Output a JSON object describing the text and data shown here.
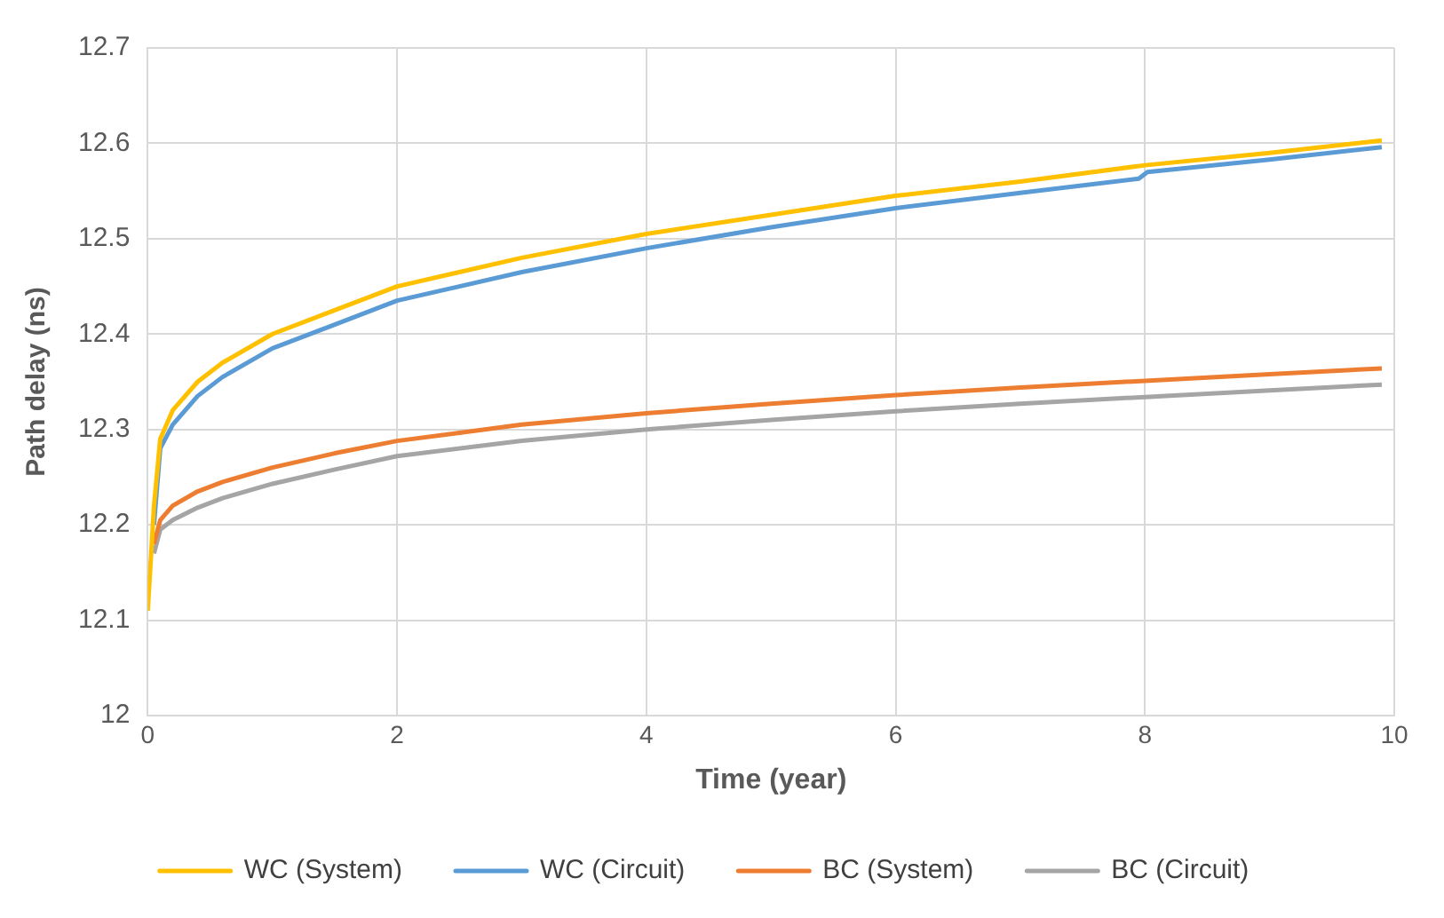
{
  "chart_data": {
    "type": "line",
    "xlabel": "Time (year)",
    "ylabel": "Path delay (ns)",
    "xlim": [
      0,
      10
    ],
    "xticks": [
      0,
      2,
      4,
      6,
      8,
      10
    ],
    "ylim": [
      12,
      12.7
    ],
    "yticks": [
      12,
      12.1,
      12.2,
      12.3,
      12.4,
      12.5,
      12.6,
      12.7
    ],
    "grid": true,
    "legend": "bottom",
    "marker": "none",
    "line_style": "solid",
    "series": [
      {
        "name": "WC (System)",
        "color": "#ffc000",
        "x": [
          0,
          0.05,
          0.1,
          0.2,
          0.4,
          0.6,
          1,
          1.5,
          2,
          3,
          4,
          5,
          6,
          7,
          8,
          9,
          9.9
        ],
        "values": [
          12.11,
          12.22,
          12.29,
          12.32,
          12.35,
          12.37,
          12.4,
          12.425,
          12.45,
          12.48,
          12.505,
          12.525,
          12.545,
          12.56,
          12.577,
          12.59,
          12.603
        ]
      },
      {
        "name": "WC (Circuit)",
        "color": "#5b9bd5",
        "x": [
          0.05,
          0.1,
          0.2,
          0.4,
          0.6,
          1,
          1.5,
          2,
          3,
          4,
          5,
          6,
          7,
          7.95,
          8.02,
          9,
          9.9
        ],
        "values": [
          12.2,
          12.28,
          12.305,
          12.335,
          12.355,
          12.385,
          12.41,
          12.435,
          12.465,
          12.49,
          12.512,
          12.532,
          12.548,
          12.563,
          12.57,
          12.583,
          12.596
        ]
      },
      {
        "name": "BC (System)",
        "color": "#ed7d31",
        "x": [
          0.05,
          0.1,
          0.2,
          0.4,
          0.6,
          1,
          1.5,
          2,
          3,
          4,
          5,
          6,
          7,
          8,
          9,
          9.9
        ],
        "values": [
          12.18,
          12.205,
          12.22,
          12.235,
          12.245,
          12.26,
          12.275,
          12.288,
          12.305,
          12.317,
          12.327,
          12.336,
          12.344,
          12.351,
          12.358,
          12.364
        ]
      },
      {
        "name": "BC (Circuit)",
        "color": "#a5a5a5",
        "x": [
          0.05,
          0.1,
          0.2,
          0.4,
          0.6,
          1,
          1.5,
          2,
          3,
          4,
          5,
          6,
          7,
          8,
          9,
          9.9
        ],
        "values": [
          12.17,
          12.195,
          12.205,
          12.218,
          12.228,
          12.243,
          12.258,
          12.272,
          12.288,
          12.3,
          12.31,
          12.319,
          12.327,
          12.334,
          12.341,
          12.347
        ]
      }
    ]
  }
}
